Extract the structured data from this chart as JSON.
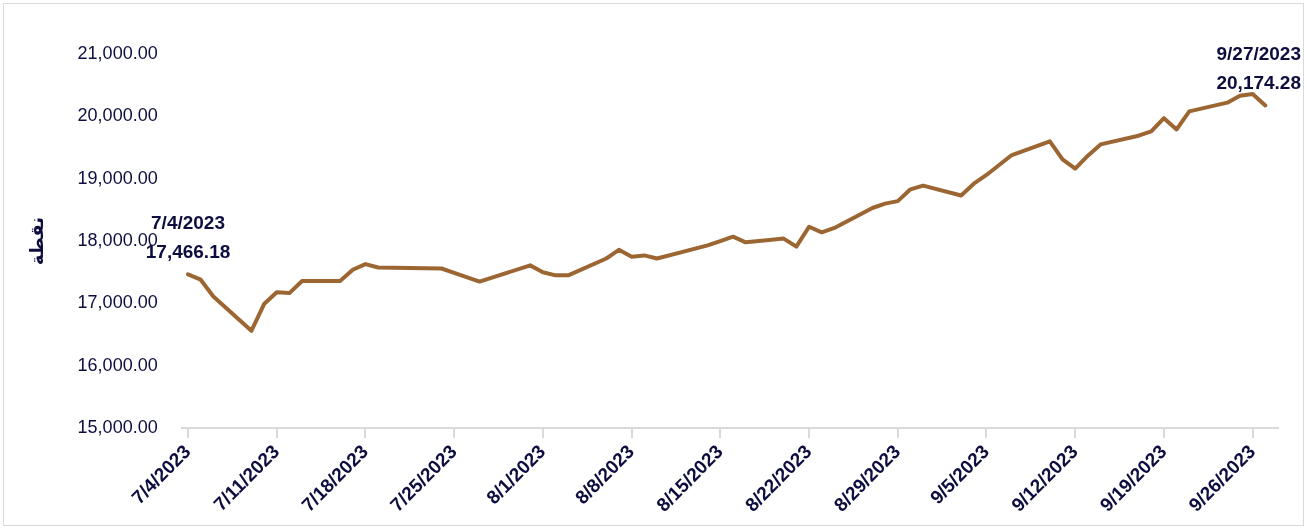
{
  "chart_data": {
    "type": "line",
    "ylabel": "نقطة",
    "x": [
      "2023-07-04",
      "2023-07-05",
      "2023-07-06",
      "2023-07-09",
      "2023-07-10",
      "2023-07-11",
      "2023-07-12",
      "2023-07-13",
      "2023-07-16",
      "2023-07-17",
      "2023-07-18",
      "2023-07-19",
      "2023-07-24",
      "2023-07-25",
      "2023-07-27",
      "2023-07-31",
      "2023-08-01",
      "2023-08-02",
      "2023-08-03",
      "2023-08-06",
      "2023-08-07",
      "2023-08-08",
      "2023-08-09",
      "2023-08-10",
      "2023-08-14",
      "2023-08-15",
      "2023-08-16",
      "2023-08-17",
      "2023-08-20",
      "2023-08-21",
      "2023-08-22",
      "2023-08-23",
      "2023-08-24",
      "2023-08-27",
      "2023-08-28",
      "2023-08-29",
      "2023-08-30",
      "2023-08-31",
      "2023-09-03",
      "2023-09-04",
      "2023-09-05",
      "2023-09-06",
      "2023-09-07",
      "2023-09-10",
      "2023-09-11",
      "2023-09-12",
      "2023-09-13",
      "2023-09-14",
      "2023-09-17",
      "2023-09-18",
      "2023-09-19",
      "2023-09-20",
      "2023-09-21",
      "2023-09-24",
      "2023-09-25",
      "2023-09-26",
      "2023-09-27"
    ],
    "series": [
      {
        "color": "#9c6632",
        "values": [
          17466.18,
          17380,
          17110,
          16560,
          16990,
          17180,
          17165,
          17360,
          17360,
          17540,
          17630,
          17575,
          17560,
          17490,
          17350,
          17610,
          17500,
          17450,
          17450,
          17720,
          17860,
          17750,
          17770,
          17720,
          17930,
          18000,
          18070,
          17980,
          18040,
          17910,
          18230,
          18140,
          18210,
          18530,
          18600,
          18640,
          18830,
          18890,
          18730,
          18920,
          19060,
          19220,
          19380,
          19600,
          19310,
          19160,
          19370,
          19550,
          19690,
          19760,
          19970,
          19790,
          20080,
          20220,
          20330,
          20360,
          20174.28
        ]
      }
    ],
    "xlim": [
      "2023-07-03T12:00",
      "2023-09-28T00:00"
    ],
    "xticks": [
      {
        "value": "2023-07-04",
        "label": "7/4/2023"
      },
      {
        "value": "2023-07-11",
        "label": "7/11/2023"
      },
      {
        "value": "2023-07-18",
        "label": "7/18/2023"
      },
      {
        "value": "2023-07-25",
        "label": "7/25/2023"
      },
      {
        "value": "2023-08-01",
        "label": "8/1/2023"
      },
      {
        "value": "2023-08-08",
        "label": "8/8/2023"
      },
      {
        "value": "2023-08-15",
        "label": "8/15/2023"
      },
      {
        "value": "2023-08-22",
        "label": "8/22/2023"
      },
      {
        "value": "2023-08-29",
        "label": "8/29/2023"
      },
      {
        "value": "2023-09-05",
        "label": "9/5/2023"
      },
      {
        "value": "2023-09-12",
        "label": "9/12/2023"
      },
      {
        "value": "2023-09-19",
        "label": "9/19/2023"
      },
      {
        "value": "2023-09-26",
        "label": "9/26/2023"
      }
    ],
    "ylim": [
      15000,
      21000
    ],
    "yticks": [
      {
        "value": 15000,
        "label": "15,000.00"
      },
      {
        "value": 16000,
        "label": "16,000.00"
      },
      {
        "value": 17000,
        "label": "17,000.00"
      },
      {
        "value": 18000,
        "label": "18,000.00"
      },
      {
        "value": 19000,
        "label": "19,000.00"
      },
      {
        "value": 20000,
        "label": "20,000.00"
      },
      {
        "value": 21000,
        "label": "21,000.00"
      }
    ],
    "annotations": [
      {
        "text": "7/4/2023\n17,466.18",
        "x": "2023-07-04",
        "y": 17466.18
      },
      {
        "text": "9/27/2023\n20,174.28",
        "x": "2023-09-27",
        "y": 20174.28
      }
    ],
    "grid": false,
    "legend": false,
    "marker": "none",
    "line_style": "solid"
  }
}
